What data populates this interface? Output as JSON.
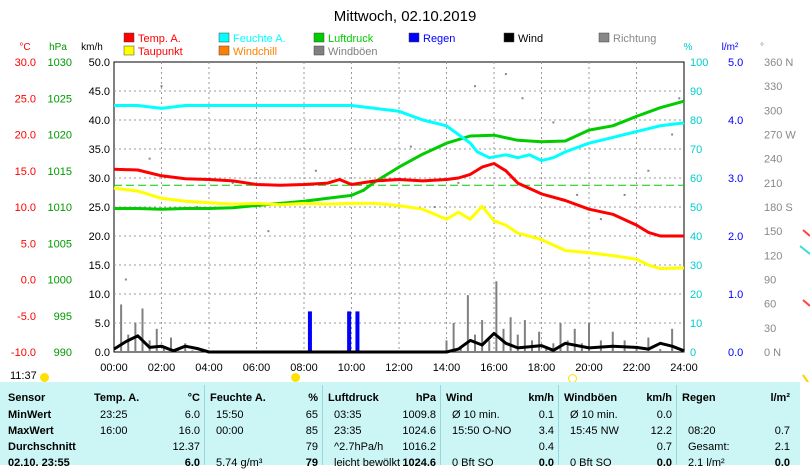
{
  "page": {
    "clock": "11:37"
  },
  "chart_data": {
    "type": "line",
    "title": "Mittwoch, 02.10.2019",
    "x_ticks": [
      "00:00",
      "02:00",
      "04:00",
      "06:00",
      "08:00",
      "10:00",
      "12:00",
      "14:00",
      "16:00",
      "18:00",
      "20:00",
      "22:00",
      "24:00"
    ],
    "axes": [
      {
        "unit": "°C",
        "color": "#ff0000",
        "ticks": [
          "30.0",
          "25.0",
          "20.0",
          "15.0",
          "10.0",
          "5.0",
          "0.0",
          "-5.0",
          "-10.0"
        ],
        "range": [
          -10,
          30
        ]
      },
      {
        "unit": "hPa",
        "color": "#009900",
        "ticks": [
          "1030",
          "1025",
          "1020",
          "1015",
          "1010",
          "1005",
          "1000",
          "995",
          "990"
        ],
        "range": [
          990,
          1030
        ]
      },
      {
        "unit": "km/h",
        "color": "#000000",
        "ticks": [
          "50.0",
          "45.0",
          "40.0",
          "35.0",
          "30.0",
          "25.0",
          "20.0",
          "15.0",
          "10.0",
          "5.0",
          "0.0"
        ],
        "range": [
          0,
          50
        ]
      },
      {
        "unit": "%",
        "color": "#00cccc",
        "ticks": [
          "100",
          "90",
          "80",
          "70",
          "60",
          "50",
          "40",
          "30",
          "20",
          "10",
          "0"
        ],
        "range": [
          0,
          100
        ]
      },
      {
        "unit": "l/m²",
        "color": "#0000ff",
        "ticks": [
          "5.0",
          "4.0",
          "3.0",
          "2.0",
          "1.0",
          "0.0"
        ],
        "range": [
          0,
          5
        ]
      },
      {
        "unit": "°",
        "color": "#888888",
        "ticks": [
          "360 N",
          "330",
          "300",
          "270 W",
          "240",
          "210",
          "180 S",
          "150",
          "120",
          "90",
          "60",
          "30",
          "0 N"
        ],
        "range": [
          0,
          360
        ]
      }
    ],
    "legend": [
      {
        "name": "Temp. A.",
        "color": "#ff0000"
      },
      {
        "name": "Feuchte A.",
        "color": "#00ffff"
      },
      {
        "name": "Luftdruck",
        "color": "#00cc00"
      },
      {
        "name": "Regen",
        "color": "#0000ff"
      },
      {
        "name": "Wind",
        "color": "#000000"
      },
      {
        "name": "Richtung",
        "color": "#888888"
      },
      {
        "name": "Taupunkt",
        "color": "#ffff00"
      },
      {
        "name": "Windchill",
        "color": "#ff8000"
      },
      {
        "name": "Windböen",
        "color": "#808080"
      }
    ],
    "series": [
      {
        "name": "Temp. A.",
        "color": "#ff0000",
        "axis": "°C",
        "x": [
          0,
          1,
          2,
          3,
          4,
          5,
          6,
          7,
          8,
          9,
          9.5,
          10,
          11,
          12,
          13,
          14,
          14.5,
          15,
          15.5,
          16,
          16.5,
          17,
          18,
          19,
          20,
          21,
          22,
          22.5,
          23,
          24
        ],
        "y": [
          15.2,
          15.1,
          14.3,
          13.9,
          13.8,
          13.6,
          13.1,
          13.0,
          13.1,
          13.3,
          13.8,
          13.1,
          13.6,
          13.8,
          13.6,
          13.8,
          14.0,
          14.5,
          15.5,
          16.0,
          15.0,
          13.3,
          11.8,
          10.9,
          9.7,
          9.0,
          7.5,
          6.5,
          6.0,
          6.0
        ]
      },
      {
        "name": "Feuchte A.",
        "color": "#00ffff",
        "axis": "%",
        "x": [
          0,
          1,
          2,
          3,
          4,
          5,
          6,
          7,
          8,
          9,
          10,
          11,
          12,
          13,
          14,
          14.5,
          15,
          15.3,
          15.8,
          16.5,
          17,
          17.5,
          18,
          18.5,
          19,
          20,
          21,
          22,
          23,
          24
        ],
        "y": [
          85,
          85,
          84,
          85,
          85,
          85,
          85,
          85,
          85,
          85,
          85,
          84,
          83,
          80,
          78,
          75,
          72,
          69,
          67,
          68,
          67,
          68,
          66,
          67,
          69,
          72,
          74,
          76,
          78,
          79
        ]
      },
      {
        "name": "Luftdruck",
        "color": "#00cc00",
        "axis": "hPa",
        "x": [
          0,
          1,
          2,
          3,
          4,
          5,
          6,
          7,
          8,
          9,
          10,
          10.5,
          11,
          12,
          13,
          14,
          15,
          16,
          17,
          18,
          19,
          20,
          21,
          22,
          23,
          24
        ],
        "y": [
          1009.8,
          1009.8,
          1009.7,
          1009.8,
          1009.8,
          1009.9,
          1010.2,
          1010.5,
          1010.8,
          1011.2,
          1011.6,
          1012.3,
          1013.5,
          1015.5,
          1017.3,
          1018.8,
          1019.8,
          1019.9,
          1019.2,
          1019.0,
          1019.1,
          1020.6,
          1021.2,
          1022.5,
          1023.7,
          1024.6
        ]
      },
      {
        "name": "Taupunkt",
        "color": "#ffff00",
        "axis": "°C",
        "x": [
          0,
          1,
          2,
          3,
          4,
          5,
          6,
          7,
          8,
          9,
          10,
          11,
          12,
          13,
          14,
          14.5,
          15,
          15.5,
          16,
          16.5,
          17,
          18,
          19,
          20,
          21,
          22,
          22.5,
          23,
          24
        ],
        "y": [
          12.6,
          12.2,
          11.2,
          10.8,
          10.6,
          10.4,
          10.5,
          10.3,
          10.5,
          10.4,
          10.5,
          10.5,
          10.2,
          9.7,
          8.3,
          9.3,
          8.3,
          10.1,
          8.1,
          7.5,
          6.4,
          5.5,
          4.0,
          3.7,
          3.3,
          2.8,
          2.0,
          1.5,
          1.6
        ]
      },
      {
        "name": "Wind",
        "color": "#000000",
        "axis": "km/h",
        "x": [
          0,
          0.5,
          1,
          1.5,
          2,
          2.5,
          3,
          3.5,
          4,
          14,
          14.5,
          15,
          15.5,
          16,
          16.5,
          17,
          18,
          18.5,
          19,
          20,
          21,
          22,
          22.5,
          23,
          23.5,
          24
        ],
        "y": [
          0.5,
          1.8,
          2.8,
          0.8,
          1.0,
          0.2,
          1.0,
          0.6,
          0,
          0,
          0.5,
          2.0,
          1.2,
          3.2,
          1.5,
          0.7,
          1.1,
          0.3,
          1.5,
          0.7,
          1.0,
          0.8,
          0.5,
          1.5,
          1.0,
          0.2
        ]
      },
      {
        "name": "Windböen",
        "color": "#808080",
        "axis": "km/h",
        "x": [
          0,
          0.3,
          0.6,
          0.9,
          1.2,
          1.5,
          1.8,
          2.1,
          2.4,
          2.7,
          3.0,
          3.3,
          3.6,
          14,
          14.3,
          14.6,
          14.9,
          15.2,
          15.5,
          15.8,
          16.1,
          16.4,
          16.7,
          17,
          17.3,
          17.6,
          17.9,
          18.2,
          18.5,
          18.8,
          19.1,
          19.4,
          19.7,
          20,
          20.5,
          21,
          21.5,
          22,
          22.5,
          23,
          23.5,
          24
        ],
        "y": [
          0,
          8.2,
          3.0,
          5.1,
          7.5,
          2.0,
          4.0,
          1.0,
          2.5,
          0.5,
          1.5,
          0.3,
          0,
          2.0,
          5.0,
          1.0,
          9.8,
          3.0,
          5.5,
          2.0,
          12.2,
          4.0,
          6.0,
          3.0,
          5.5,
          2.0,
          3.5,
          1.0,
          1.5,
          5.0,
          2.0,
          4.0,
          1.5,
          5.0,
          2.0,
          3.5,
          2.0,
          1.0,
          2.5,
          0.5,
          4.0,
          1.0
        ]
      }
    ],
    "rain_bars": {
      "color": "#0000ff",
      "axis": "l/m²",
      "x": [
        8.25,
        9.9,
        10.25
      ],
      "values": [
        0.7,
        0.7,
        0.7
      ]
    },
    "dewpoint_ref": {
      "color": "#00cc00",
      "axis": "°C",
      "value": 13.0
    },
    "direction_dots": {
      "color": "#888888",
      "axis": "°",
      "x": [
        0.5,
        1.5,
        2.0,
        3.5,
        5,
        6.5,
        8.5,
        10.5,
        12.5,
        13.5,
        14.5,
        15.2,
        16.5,
        17.2,
        18.5,
        19.5,
        20.5,
        21.5,
        22.5,
        23.5,
        23.8
      ],
      "y": [
        90,
        240,
        330,
        180,
        210,
        150,
        225,
        200,
        255,
        180,
        210,
        330,
        345,
        315,
        285,
        195,
        165,
        195,
        225,
        270,
        315
      ]
    }
  },
  "table": {
    "headers": [
      {
        "label": "Sensor",
        "unit": ""
      },
      {
        "label": "Temp. A.",
        "unit": "°C"
      },
      {
        "label": "Feuchte A.",
        "unit": "%"
      },
      {
        "label": "Luftdruck",
        "unit": "hPa"
      },
      {
        "label": "Wind",
        "unit": "km/h"
      },
      {
        "label": "Windböen",
        "unit": "km/h"
      },
      {
        "label": "Regen",
        "unit": "l/m²"
      }
    ],
    "rows": [
      {
        "label": "MinWert",
        "cells": [
          [
            "23:25",
            "6.0"
          ],
          [
            "15:50",
            "65"
          ],
          [
            "03:35",
            "1009.8"
          ],
          [
            "Ø 10 min.",
            "0.1"
          ],
          [
            "Ø 10 min.",
            "0.0"
          ],
          [
            "",
            ""
          ]
        ]
      },
      {
        "label": "MaxWert",
        "cells": [
          [
            "16:00",
            "16.0"
          ],
          [
            "00:00",
            "85"
          ],
          [
            "23:35",
            "1024.6"
          ],
          [
            "15:50   O-NO",
            "3.4"
          ],
          [
            "15:45   NW",
            "12.2"
          ],
          [
            "08:20",
            "0.7"
          ]
        ]
      },
      {
        "label": "Durchschnitt",
        "cells": [
          [
            "",
            "12.37"
          ],
          [
            "",
            "79"
          ],
          [
            "^2.7hPa/h",
            "1016.2"
          ],
          [
            "",
            "0.4"
          ],
          [
            "",
            "0.7"
          ],
          [
            "Gesamt:",
            "2.1"
          ]
        ]
      },
      {
        "label": "02.10. 23:55",
        "cells": [
          [
            "",
            "6.0"
          ],
          [
            "5.74 g/m³",
            "79"
          ],
          [
            "leicht bewölkt",
            "1024.6"
          ],
          [
            "0 Bft SO",
            "0.0"
          ],
          [
            "0 Bft SO",
            "0.0"
          ],
          [
            "2.1 l/m²",
            "0.0"
          ]
        ]
      }
    ]
  }
}
